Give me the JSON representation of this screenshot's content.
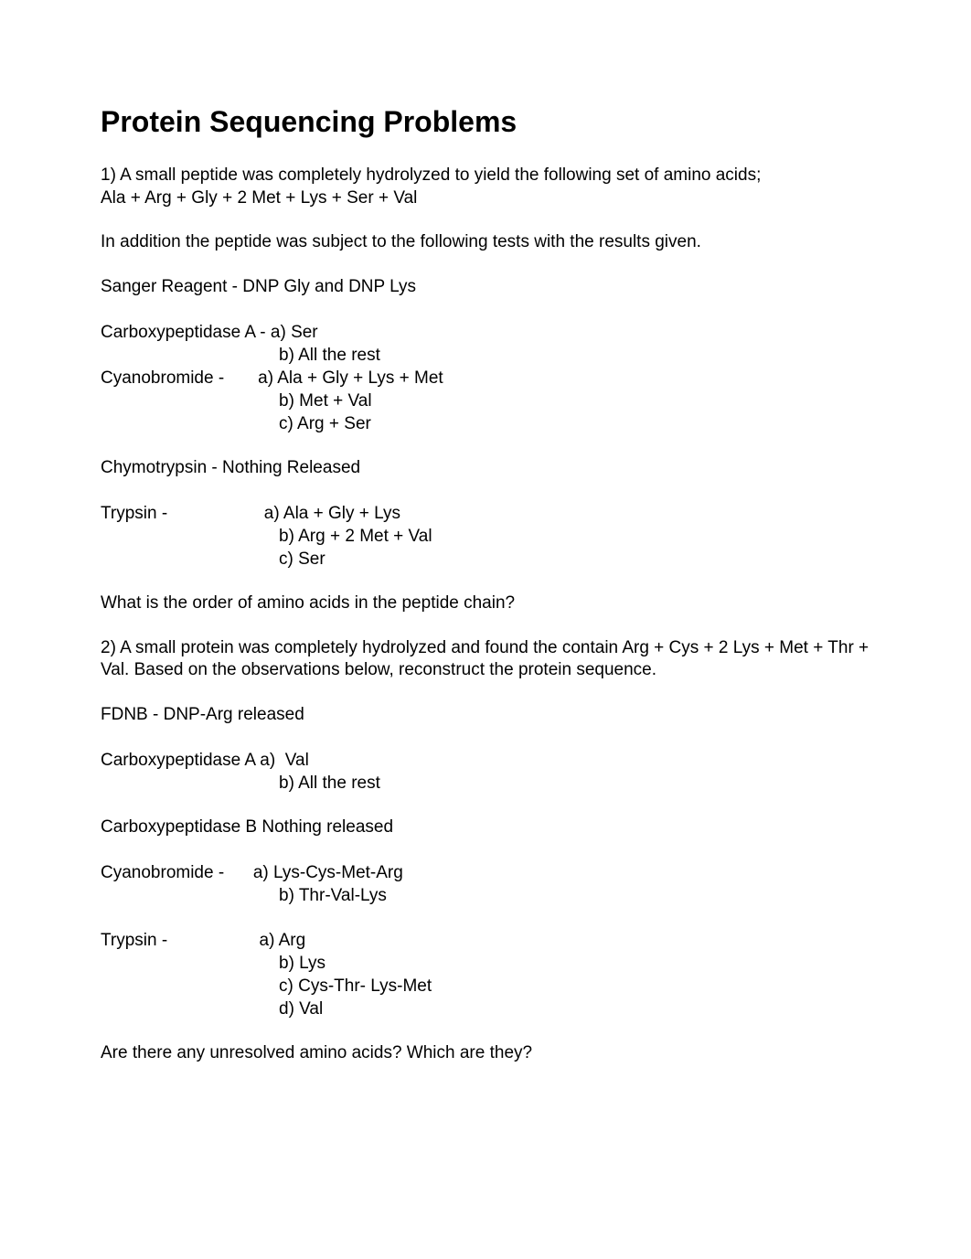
{
  "title": "Protein Sequencing Problems",
  "q1": {
    "intro": "1) A small peptide was completely hydrolyzed to yield the following set of amino acids;",
    "composition": "Ala + Arg + Gly + 2 Met + Lys + Ser + Val",
    "subtext": "In addition the peptide was subject to the following tests with the results given.",
    "sanger_label": "Sanger Reagent - DNP Gly and DNP Lys",
    "carboxy_label": "Carboxypeptidase A - ",
    "carboxy_a": "a) Ser",
    "carboxy_b": "b) All the rest",
    "cyano_label": "Cyanobromide -       ",
    "cyano_a": "a) Ala + Gly + Lys + Met",
    "cyano_b": "b) Met + Val",
    "cyano_c": "c) Arg + Ser",
    "chymo": "Chymotrypsin - Nothing Released",
    "trypsin_label": "Trypsin -                    ",
    "trypsin_a": "a) Ala + Gly + Lys",
    "trypsin_b": "b) Arg + 2 Met + Val",
    "trypsin_c": "c) Ser",
    "question": "What is the order of amino acids in the peptide chain?"
  },
  "q2": {
    "intro": "2) A small protein was completely hydrolyzed and found the contain Arg + Cys + 2 Lys + Met + Thr + Val. Based on the observations below, reconstruct the protein sequence.",
    "fdnb": "FDNB - DNP-Arg released",
    "carboxyA_label": "Carboxypeptidase A ",
    "carboxyA_a": "a)  Val",
    "carboxyA_b": "b) All the rest",
    "carboxyB": "Carboxypeptidase B Nothing released",
    "cyano_label": "Cyanobromide -      ",
    "cyano_a": "a) Lys-Cys-Met-Arg",
    "cyano_b": "b) Thr-Val-Lys",
    "trypsin_label": "Trypsin -                   ",
    "trypsin_a": "a) Arg",
    "trypsin_b": "b) Lys",
    "trypsin_c": "c) Cys-Thr- Lys-Met",
    "trypsin_d": "d) Val",
    "question": "Are there any unresolved amino acids? Which are they?"
  }
}
